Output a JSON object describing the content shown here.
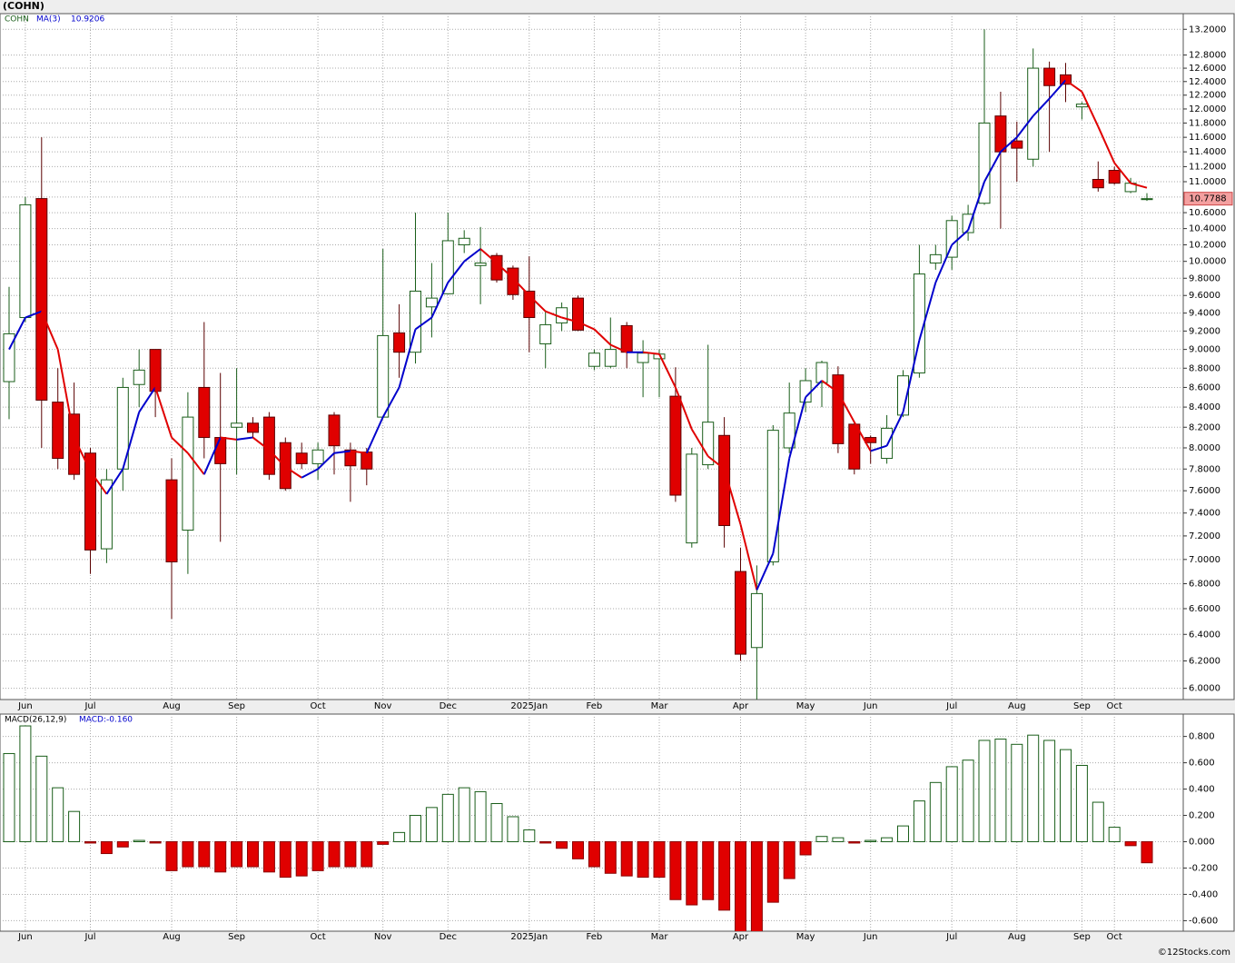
{
  "header": {
    "title": "(COHN)",
    "footer": "©12Stocks.com"
  },
  "chart_data": [
    {
      "type": "candlestick",
      "symbol": "COHN",
      "log_scale": true,
      "grid": true,
      "up_color": "#ffffff",
      "up_stroke": "#1a5e1a",
      "down_color": "#e00000",
      "down_stroke": "#5a0000",
      "categories": [
        null,
        "Jun",
        null,
        null,
        null,
        "Jul",
        null,
        null,
        null,
        null,
        "Aug",
        null,
        null,
        null,
        "Sep",
        null,
        null,
        null,
        null,
        "Oct",
        null,
        null,
        null,
        "Nov",
        null,
        null,
        null,
        "Dec",
        null,
        null,
        null,
        null,
        "2025Jan",
        null,
        null,
        null,
        "Feb",
        null,
        null,
        null,
        "Mar",
        null,
        null,
        null,
        null,
        "Apr",
        null,
        null,
        null,
        "May",
        null,
        null,
        null,
        "Jun",
        null,
        null,
        null,
        null,
        "Jul",
        null,
        null,
        null,
        "Aug",
        null,
        null,
        null,
        "Sep",
        null,
        "Oct",
        null,
        null
      ],
      "open": [
        8.66,
        9.35,
        10.78,
        8.45,
        8.33,
        7.95,
        7.09,
        7.8,
        8.63,
        9.0,
        7.7,
        7.25,
        8.6,
        8.1,
        8.2,
        8.24,
        8.3,
        8.05,
        7.95,
        7.85,
        8.32,
        7.98,
        7.96,
        8.3,
        9.18,
        8.97,
        9.47,
        9.62,
        10.2,
        9.95,
        10.07,
        9.92,
        9.65,
        9.06,
        9.29,
        9.57,
        8.82,
        8.82,
        9.26,
        8.86,
        8.9,
        8.51,
        7.14,
        7.84,
        8.12,
        6.9,
        6.3,
        6.98,
        8.0,
        8.45,
        8.65,
        8.73,
        8.23,
        8.1,
        7.9,
        8.32,
        8.75,
        9.98,
        10.05,
        10.35,
        10.72,
        11.9,
        11.55,
        11.3,
        12.6,
        12.5,
        12.03,
        11.03,
        11.15,
        10.87,
        10.77
      ],
      "high": [
        9.7,
        10.8,
        11.6,
        8.8,
        8.65,
        8.0,
        7.8,
        8.7,
        9.0,
        9.0,
        7.9,
        8.55,
        9.3,
        8.75,
        8.8,
        8.3,
        8.35,
        8.1,
        8.05,
        8.05,
        8.35,
        8.05,
        8.0,
        10.15,
        9.5,
        10.6,
        9.98,
        10.6,
        10.38,
        10.42,
        10.1,
        9.95,
        10.06,
        9.42,
        9.52,
        9.6,
        9.0,
        9.35,
        9.3,
        9.1,
        9.0,
        8.81,
        8.0,
        9.05,
        8.3,
        7.1,
        6.95,
        8.22,
        8.65,
        8.8,
        8.88,
        8.82,
        8.25,
        8.12,
        8.32,
        8.78,
        10.2,
        10.2,
        10.56,
        10.7,
        13.2,
        12.25,
        11.82,
        12.9,
        12.7,
        12.68,
        12.1,
        11.27,
        11.2,
        11.05,
        10.85
      ],
      "low": [
        8.28,
        9.3,
        8.0,
        7.8,
        7.7,
        6.88,
        6.97,
        7.6,
        8.4,
        8.3,
        6.52,
        6.88,
        7.9,
        7.15,
        7.75,
        8.1,
        7.7,
        7.6,
        7.8,
        7.7,
        7.75,
        7.5,
        7.65,
        8.3,
        8.7,
        8.85,
        9.13,
        9.62,
        10.1,
        9.5,
        9.75,
        9.55,
        8.97,
        8.8,
        9.2,
        9.2,
        8.78,
        8.8,
        8.8,
        8.5,
        8.5,
        7.5,
        7.1,
        7.8,
        7.1,
        6.2,
        5.92,
        6.95,
        7.95,
        8.35,
        8.4,
        7.95,
        7.75,
        7.85,
        7.85,
        8.3,
        8.7,
        9.9,
        9.9,
        10.25,
        10.7,
        10.4,
        11.0,
        11.2,
        11.4,
        12.1,
        11.85,
        10.87,
        10.96,
        10.85,
        10.75
      ],
      "close": [
        9.17,
        10.7,
        8.47,
        7.9,
        7.75,
        7.08,
        7.7,
        8.6,
        8.78,
        8.56,
        6.98,
        8.3,
        8.1,
        7.85,
        8.24,
        8.15,
        7.75,
        7.62,
        7.85,
        7.98,
        8.02,
        7.83,
        7.8,
        9.15,
        8.97,
        9.65,
        9.57,
        10.25,
        10.28,
        9.98,
        9.78,
        9.61,
        9.35,
        9.27,
        9.46,
        9.21,
        8.96,
        9.0,
        8.97,
        8.96,
        8.95,
        7.56,
        7.94,
        8.25,
        7.29,
        6.25,
        6.72,
        8.17,
        8.34,
        8.67,
        8.86,
        8.04,
        7.8,
        8.05,
        8.19,
        8.72,
        9.85,
        10.08,
        10.5,
        10.58,
        11.8,
        11.4,
        11.45,
        12.6,
        12.34,
        12.36,
        12.07,
        10.92,
        10.98,
        10.98,
        10.7788
      ],
      "series": [
        {
          "name": "MA(3)",
          "color_up": "#0000cc",
          "color_down": "#e00000",
          "values": [
            9.0,
            9.35,
            9.42,
            9.0,
            8.1,
            7.78,
            7.57,
            7.8,
            8.35,
            8.6,
            8.1,
            7.95,
            7.75,
            8.1,
            8.08,
            8.1,
            7.98,
            7.82,
            7.72,
            7.8,
            7.95,
            7.97,
            7.95,
            8.3,
            8.6,
            9.22,
            9.35,
            9.75,
            10.0,
            10.15,
            9.98,
            9.8,
            9.6,
            9.42,
            9.35,
            9.3,
            9.22,
            9.05,
            8.97,
            8.97,
            8.95,
            8.6,
            8.18,
            7.92,
            7.8,
            7.3,
            6.75,
            7.05,
            7.9,
            8.5,
            8.67,
            8.55,
            8.25,
            7.97,
            8.02,
            8.35,
            9.1,
            9.75,
            10.2,
            10.38,
            11.0,
            11.4,
            11.6,
            11.9,
            12.15,
            12.42,
            12.25,
            11.75,
            11.25,
            10.98,
            10.9206
          ]
        }
      ],
      "ylim": [
        5.92,
        13.45
      ],
      "yticks": [
        {
          "value": 13.2,
          "label": "13.2000"
        },
        {
          "value": 12.8,
          "label": "12.8000"
        },
        {
          "value": 12.6,
          "label": "12.6000"
        },
        {
          "value": 12.4,
          "label": "12.4000"
        },
        {
          "value": 12.2,
          "label": "12.2000"
        },
        {
          "value": 12.0,
          "label": "12.0000"
        },
        {
          "value": 11.8,
          "label": "11.8000"
        },
        {
          "value": 11.6,
          "label": "11.6000"
        },
        {
          "value": 11.4,
          "label": "11.4000"
        },
        {
          "value": 11.2,
          "label": "11.2000"
        },
        {
          "value": 11.0,
          "label": "11.0000"
        },
        {
          "value": 10.8,
          "label": "10.8000"
        },
        {
          "value": 10.6,
          "label": "10.6000"
        },
        {
          "value": 10.4,
          "label": "10.4000"
        },
        {
          "value": 10.2,
          "label": "10.2000"
        },
        {
          "value": 10.0,
          "label": "10.0000"
        },
        {
          "value": 9.8,
          "label": "9.8000"
        },
        {
          "value": 9.6,
          "label": "9.6000"
        },
        {
          "value": 9.4,
          "label": "9.4000"
        },
        {
          "value": 9.2,
          "label": "9.2000"
        },
        {
          "value": 9.0,
          "label": "9.0000"
        },
        {
          "value": 8.8,
          "label": "8.8000"
        },
        {
          "value": 8.6,
          "label": "8.6000"
        },
        {
          "value": 8.4,
          "label": "8.4000"
        },
        {
          "value": 8.2,
          "label": "8.2000"
        },
        {
          "value": 8.0,
          "label": "8.0000"
        },
        {
          "value": 7.8,
          "label": "7.8000"
        },
        {
          "value": 7.6,
          "label": "7.6000"
        },
        {
          "value": 7.4,
          "label": "7.4000"
        },
        {
          "value": 7.2,
          "label": "7.2000"
        },
        {
          "value": 7.0,
          "label": "7.0000"
        },
        {
          "value": 6.8,
          "label": "6.8000"
        },
        {
          "value": 6.6,
          "label": "6.6000"
        },
        {
          "value": 6.4,
          "label": "6.4000"
        },
        {
          "value": 6.2,
          "label": "6.2000"
        },
        {
          "value": 6.0,
          "label": "6.0000"
        }
      ]
    },
    {
      "type": "bar",
      "indicator": "MACD(26,12,9)",
      "latest_label": "MACD:-0.160",
      "grid": true,
      "pos_color": "#ffffff",
      "pos_stroke": "#1a5e1a",
      "neg_color": "#e00000",
      "neg_stroke": "#8a0000",
      "values": [
        0.67,
        0.88,
        0.65,
        0.41,
        0.23,
        -0.01,
        -0.09,
        -0.04,
        0.01,
        -0.01,
        -0.22,
        -0.19,
        -0.19,
        -0.23,
        -0.19,
        -0.19,
        -0.23,
        -0.27,
        -0.26,
        -0.22,
        -0.19,
        -0.19,
        -0.19,
        -0.02,
        0.07,
        0.2,
        0.26,
        0.36,
        0.41,
        0.38,
        0.29,
        0.19,
        0.09,
        -0.01,
        -0.05,
        -0.13,
        -0.19,
        -0.24,
        -0.26,
        -0.27,
        -0.27,
        -0.44,
        -0.48,
        -0.44,
        -0.52,
        -0.7,
        -0.69,
        -0.46,
        -0.28,
        -0.1,
        0.04,
        0.03,
        -0.01,
        0.01,
        0.03,
        0.12,
        0.31,
        0.45,
        0.57,
        0.62,
        0.77,
        0.78,
        0.74,
        0.81,
        0.77,
        0.7,
        0.58,
        0.3,
        0.11,
        -0.03,
        -0.16
      ],
      "ylim": [
        -0.68,
        0.97
      ],
      "yticks": [
        {
          "value": 0.8,
          "label": "0.800"
        },
        {
          "value": 0.6,
          "label": "0.600"
        },
        {
          "value": 0.4,
          "label": "0.400"
        },
        {
          "value": 0.2,
          "label": "0.200"
        },
        {
          "value": 0,
          "label": "0.000"
        },
        {
          "value": -0.2,
          "label": "-0.200"
        },
        {
          "value": -0.4,
          "label": "-0.400"
        },
        {
          "value": -0.6,
          "label": "-0.600"
        }
      ]
    }
  ]
}
